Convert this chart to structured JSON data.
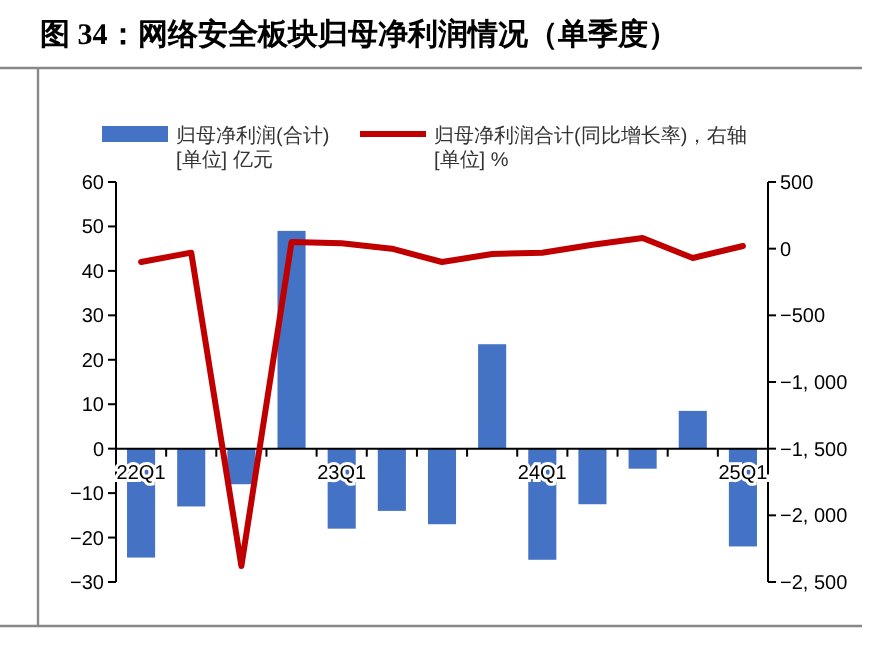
{
  "chart_data": {
    "type": "bar",
    "title": "图 34：网络安全板块归母净利润情况（单季度）",
    "ylabel": "[单位] 亿元",
    "y2label": "[单位] %",
    "categories": [
      "22Q1",
      null,
      null,
      null,
      "23Q1",
      null,
      null,
      null,
      "24Q1",
      null,
      null,
      null,
      "25Q1"
    ],
    "series": [
      {
        "name": "归母净利润(合计)",
        "color": "#4472c4",
        "values": [
          -24.5,
          -13,
          -8,
          49,
          -18,
          -14,
          -17,
          23.5,
          -25,
          -12.5,
          -4.5,
          8.5,
          -22
        ]
      },
      {
        "name": "归母净利润合计(同比增长率)，右轴",
        "type": "line",
        "axis": "y2",
        "color": "#c00000",
        "values": [
          -100,
          -30,
          -2380,
          50,
          40,
          0,
          -100,
          -40,
          -30,
          30,
          80,
          -70,
          20
        ]
      }
    ],
    "ylim": [
      -30,
      60
    ],
    "yticks": [
      {
        "value": 60,
        "label": "60"
      },
      {
        "value": 50,
        "label": "50"
      },
      {
        "value": 40,
        "label": "40"
      },
      {
        "value": 30,
        "label": "30"
      },
      {
        "value": 20,
        "label": "20"
      },
      {
        "value": 10,
        "label": "10"
      },
      {
        "value": 0,
        "label": "0"
      },
      {
        "value": -10,
        "label": "−10"
      },
      {
        "value": -20,
        "label": "−20"
      },
      {
        "value": -30,
        "label": "−30"
      }
    ],
    "y2lim": [
      -2500,
      500
    ],
    "y2ticks": [
      {
        "value": 500,
        "label": "500"
      },
      {
        "value": 0,
        "label": "0"
      },
      {
        "value": -500,
        "label": "−500"
      },
      {
        "value": -1000,
        "label": "−1, 000"
      },
      {
        "value": -1500,
        "label": "−1, 500"
      },
      {
        "value": -2000,
        "label": "−2, 000"
      },
      {
        "value": -2500,
        "label": "−2, 500"
      }
    ],
    "legend": "top",
    "grid": false
  }
}
